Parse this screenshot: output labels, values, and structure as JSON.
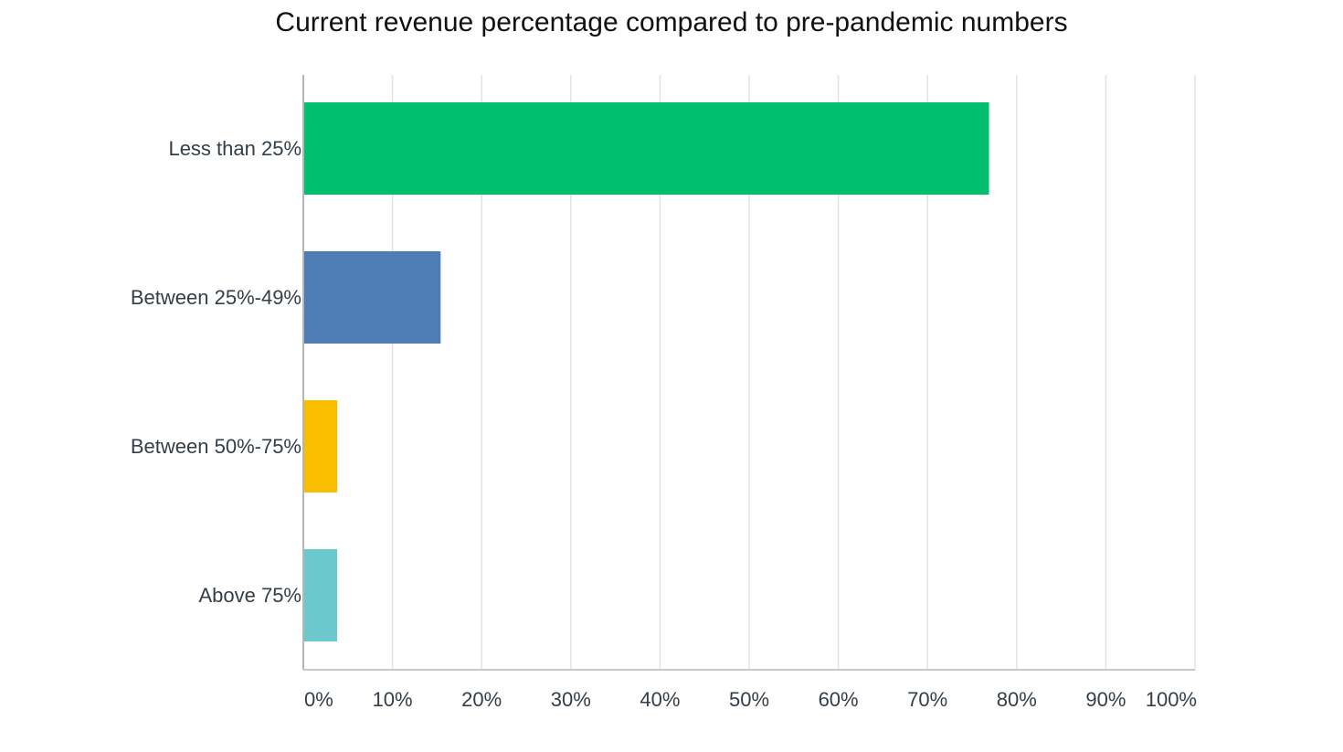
{
  "chart_data": {
    "type": "bar",
    "orientation": "horizontal",
    "title": "Current revenue percentage compared to pre-pandemic numbers",
    "categories": [
      "Less than 25%",
      "Between 25%-49%",
      "Between 50%-75%",
      "Above 75%"
    ],
    "values": [
      76.9,
      15.4,
      3.8,
      3.8
    ],
    "colors": [
      "#00bf6f",
      "#507cb6",
      "#f9be00",
      "#6bc8cd"
    ],
    "xlim": [
      0,
      100
    ],
    "xticks": [
      0,
      10,
      20,
      30,
      40,
      50,
      60,
      70,
      80,
      90,
      100
    ],
    "xtick_labels": [
      "0%",
      "10%",
      "20%",
      "30%",
      "40%",
      "50%",
      "60%",
      "70%",
      "80%",
      "90%",
      "100%"
    ],
    "grid": true,
    "legend": "none"
  }
}
